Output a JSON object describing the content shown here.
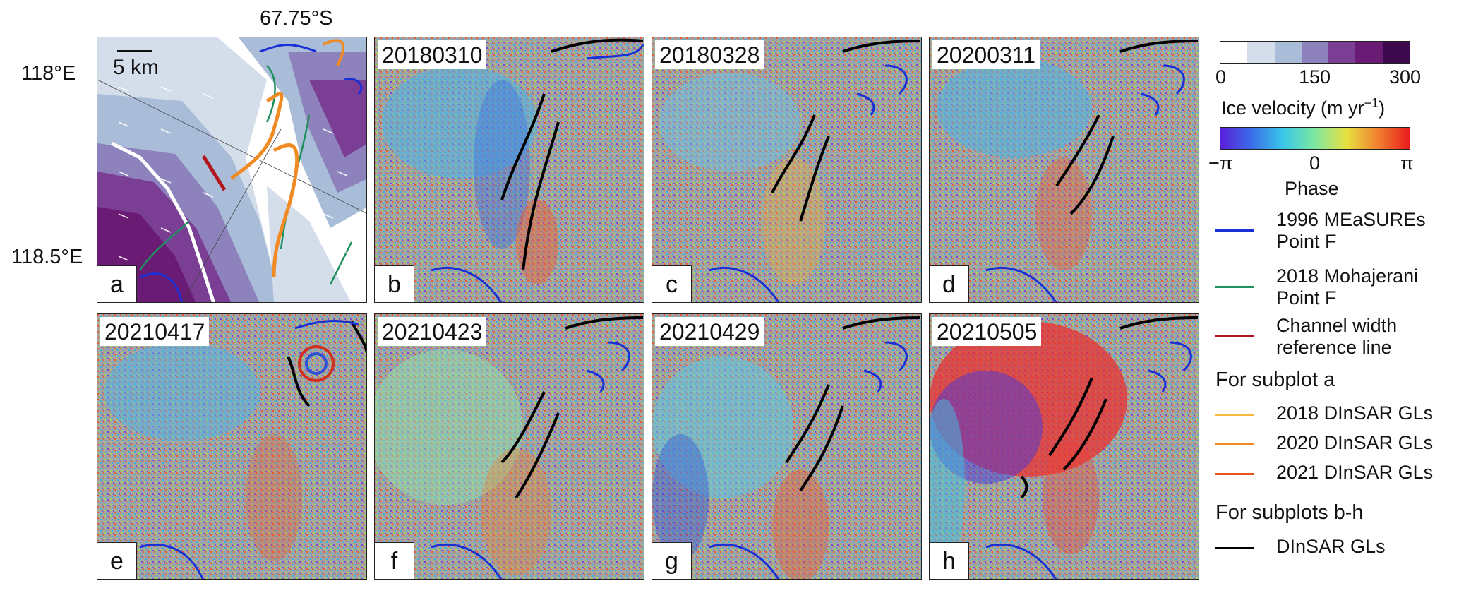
{
  "coords": {
    "top_lat": "67.75°S",
    "lon1": "118°E",
    "lon2": "118.5°E"
  },
  "scale_bar": "5 km",
  "panels": [
    {
      "letter": "a",
      "date": ""
    },
    {
      "letter": "b",
      "date": "20180310"
    },
    {
      "letter": "c",
      "date": "20180328"
    },
    {
      "letter": "d",
      "date": "20200311"
    },
    {
      "letter": "e",
      "date": "20210417"
    },
    {
      "letter": "f",
      "date": "20210423"
    },
    {
      "letter": "g",
      "date": "20210429"
    },
    {
      "letter": "h",
      "date": "20210505"
    }
  ],
  "velocity_colorbar": {
    "ticks": [
      "0",
      "150",
      "300"
    ],
    "label": "Ice velocity (m yr",
    "label_sup": "−1",
    "label_end": ")",
    "colors": [
      "#ffffff",
      "#d3deea",
      "#a9bcd8",
      "#8d82bc",
      "#7a3e95",
      "#6a1b73",
      "#3d0a4e"
    ]
  },
  "phase_colorbar": {
    "ticks": [
      "−π",
      "0",
      "π"
    ],
    "label": "Phase"
  },
  "legend": {
    "items": [
      {
        "label1": "1996 MEaSUREs",
        "label2": "Point F",
        "color": "#1a2fd6"
      },
      {
        "label1": "2018 Mohajerani",
        "label2": "Point F",
        "color": "#1f8f5e"
      },
      {
        "label1": "Channel width",
        "label2": "reference line",
        "color": "#b3151d"
      }
    ],
    "subplot_a_head": "For subplot a",
    "subplot_a_items": [
      {
        "label": "2018 DInSAR GLs",
        "color": "#f6b93a"
      },
      {
        "label": "2020 DInSAR GLs",
        "color": "#f08a24"
      },
      {
        "label": "2021 DInSAR GLs",
        "color": "#e8551c"
      }
    ],
    "subplot_bh_head": "For subplots b-h",
    "subplot_bh_items": [
      {
        "label": "DInSAR GLs",
        "color": "#000000"
      }
    ]
  }
}
